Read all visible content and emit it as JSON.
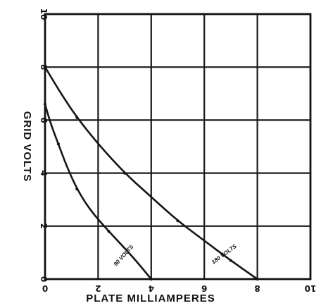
{
  "chart_data": {
    "type": "line",
    "title": "",
    "xlabel": "PLATE MILLIAMPERES",
    "ylabel": "GRID VOLTS",
    "xlim": [
      0,
      10
    ],
    "ylim": [
      0,
      10
    ],
    "x_ticks": [
      "0",
      "2",
      "4",
      "6",
      "8",
      "10"
    ],
    "y_ticks": [
      "0",
      "2",
      "4",
      "6",
      "8",
      "10"
    ],
    "grid": true,
    "series": [
      {
        "name": "90 VOLTS",
        "points": [
          {
            "x": 0,
            "y": 6.6
          },
          {
            "x": 0.2,
            "y": 5.9
          },
          {
            "x": 0.5,
            "y": 5.1
          },
          {
            "x": 0.8,
            "y": 4.3
          },
          {
            "x": 1.2,
            "y": 3.4
          },
          {
            "x": 1.7,
            "y": 2.6
          },
          {
            "x": 2.4,
            "y": 1.8
          },
          {
            "x": 3.3,
            "y": 0.85
          },
          {
            "x": 4.0,
            "y": 0
          }
        ]
      },
      {
        "name": "180 VOLTS",
        "points": [
          {
            "x": 0,
            "y": 8.0
          },
          {
            "x": 0.6,
            "y": 7.0
          },
          {
            "x": 1.2,
            "y": 6.1
          },
          {
            "x": 2.0,
            "y": 5.1
          },
          {
            "x": 3.0,
            "y": 4.0
          },
          {
            "x": 4.0,
            "y": 3.1
          },
          {
            "x": 5.0,
            "y": 2.2
          },
          {
            "x": 6.0,
            "y": 1.45
          },
          {
            "x": 7.0,
            "y": 0.7
          },
          {
            "x": 8.0,
            "y": 0
          }
        ]
      }
    ],
    "series_labels": [
      "90 VOLTS",
      "180 VOLTS"
    ]
  }
}
